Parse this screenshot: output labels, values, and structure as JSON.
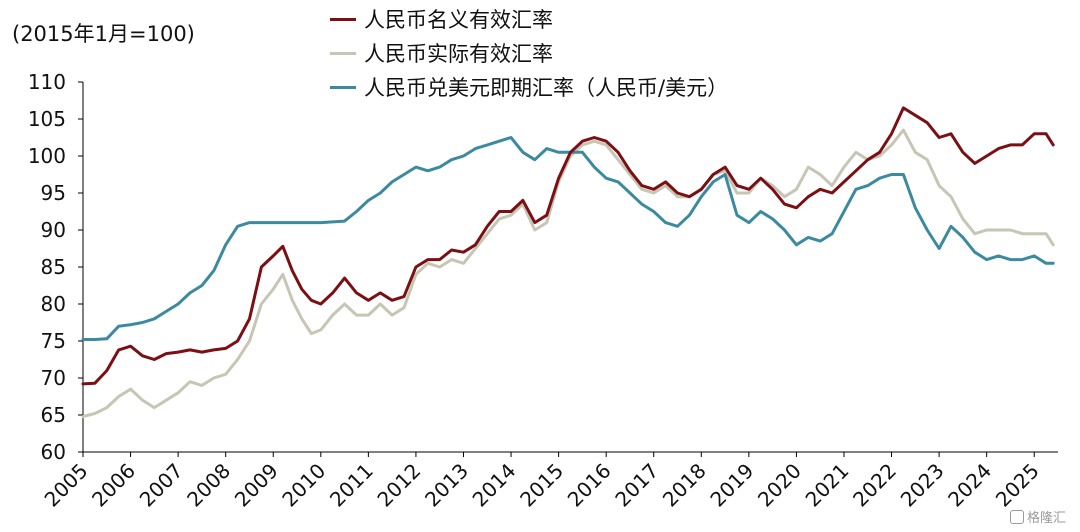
{
  "chart_data": {
    "type": "line",
    "unit_label": "(2015年1月=100)",
    "ylim": [
      60,
      110
    ],
    "yticks": [
      60,
      65,
      70,
      75,
      80,
      85,
      90,
      95,
      100,
      105,
      110
    ],
    "xlim": [
      2005,
      2025.5
    ],
    "xticks": [
      "2005",
      "2006",
      "2007",
      "2008",
      "2009",
      "2010",
      "2011",
      "2012",
      "2013",
      "2014",
      "2015",
      "2016",
      "2017",
      "2018",
      "2019",
      "2020",
      "2021",
      "2022",
      "2023",
      "2024",
      "2025"
    ],
    "legend_position": "top-center",
    "grid": false,
    "series": [
      {
        "name": "人民币名义有效汇率",
        "color": "#7b0f14",
        "points": [
          [
            2005.0,
            69.2
          ],
          [
            2005.25,
            69.3
          ],
          [
            2005.5,
            71.0
          ],
          [
            2005.75,
            73.8
          ],
          [
            2006.0,
            74.3
          ],
          [
            2006.25,
            73.0
          ],
          [
            2006.5,
            72.5
          ],
          [
            2006.75,
            73.3
          ],
          [
            2007.0,
            73.5
          ],
          [
            2007.25,
            73.8
          ],
          [
            2007.5,
            73.5
          ],
          [
            2007.75,
            73.8
          ],
          [
            2008.0,
            74.0
          ],
          [
            2008.25,
            75.0
          ],
          [
            2008.5,
            78.0
          ],
          [
            2008.75,
            85.0
          ],
          [
            2009.0,
            86.5
          ],
          [
            2009.2,
            87.8
          ],
          [
            2009.4,
            84.5
          ],
          [
            2009.6,
            82.0
          ],
          [
            2009.8,
            80.5
          ],
          [
            2010.0,
            80.0
          ],
          [
            2010.25,
            81.5
          ],
          [
            2010.5,
            83.5
          ],
          [
            2010.75,
            81.5
          ],
          [
            2011.0,
            80.5
          ],
          [
            2011.25,
            81.5
          ],
          [
            2011.5,
            80.5
          ],
          [
            2011.75,
            81.0
          ],
          [
            2012.0,
            85.0
          ],
          [
            2012.25,
            86.0
          ],
          [
            2012.5,
            86.0
          ],
          [
            2012.75,
            87.3
          ],
          [
            2013.0,
            87.0
          ],
          [
            2013.25,
            88.0
          ],
          [
            2013.5,
            90.5
          ],
          [
            2013.75,
            92.5
          ],
          [
            2014.0,
            92.5
          ],
          [
            2014.25,
            94.0
          ],
          [
            2014.5,
            91.0
          ],
          [
            2014.75,
            92.0
          ],
          [
            2015.0,
            97.0
          ],
          [
            2015.25,
            100.5
          ],
          [
            2015.5,
            102.0
          ],
          [
            2015.75,
            102.5
          ],
          [
            2016.0,
            102.0
          ],
          [
            2016.25,
            100.5
          ],
          [
            2016.5,
            98.0
          ],
          [
            2016.75,
            96.0
          ],
          [
            2017.0,
            95.5
          ],
          [
            2017.25,
            96.5
          ],
          [
            2017.5,
            95.0
          ],
          [
            2017.75,
            94.5
          ],
          [
            2018.0,
            95.5
          ],
          [
            2018.25,
            97.5
          ],
          [
            2018.5,
            98.5
          ],
          [
            2018.75,
            96.0
          ],
          [
            2019.0,
            95.5
          ],
          [
            2019.25,
            97.0
          ],
          [
            2019.5,
            95.5
          ],
          [
            2019.75,
            93.5
          ],
          [
            2020.0,
            93.0
          ],
          [
            2020.25,
            94.5
          ],
          [
            2020.5,
            95.5
          ],
          [
            2020.75,
            95.0
          ],
          [
            2021.0,
            96.5
          ],
          [
            2021.25,
            98.0
          ],
          [
            2021.5,
            99.5
          ],
          [
            2021.75,
            100.5
          ],
          [
            2022.0,
            103.0
          ],
          [
            2022.25,
            106.5
          ],
          [
            2022.5,
            105.5
          ],
          [
            2022.75,
            104.5
          ],
          [
            2023.0,
            102.5
          ],
          [
            2023.25,
            103.0
          ],
          [
            2023.5,
            100.5
          ],
          [
            2023.75,
            99.0
          ],
          [
            2024.0,
            100.0
          ],
          [
            2024.25,
            101.0
          ],
          [
            2024.5,
            101.5
          ],
          [
            2024.75,
            101.5
          ],
          [
            2025.0,
            103.0
          ],
          [
            2025.25,
            103.0
          ],
          [
            2025.4,
            101.5
          ]
        ]
      },
      {
        "name": "人民币实际有效汇率",
        "color": "#c7c5b4",
        "points": [
          [
            2005.0,
            64.8
          ],
          [
            2005.25,
            65.2
          ],
          [
            2005.5,
            66.0
          ],
          [
            2005.75,
            67.5
          ],
          [
            2006.0,
            68.5
          ],
          [
            2006.25,
            67.0
          ],
          [
            2006.5,
            66.0
          ],
          [
            2006.75,
            67.0
          ],
          [
            2007.0,
            68.0
          ],
          [
            2007.25,
            69.5
          ],
          [
            2007.5,
            69.0
          ],
          [
            2007.75,
            70.0
          ],
          [
            2008.0,
            70.5
          ],
          [
            2008.25,
            72.5
          ],
          [
            2008.5,
            75.0
          ],
          [
            2008.75,
            80.0
          ],
          [
            2009.0,
            82.0
          ],
          [
            2009.2,
            84.0
          ],
          [
            2009.4,
            80.5
          ],
          [
            2009.6,
            78.0
          ],
          [
            2009.8,
            76.0
          ],
          [
            2010.0,
            76.5
          ],
          [
            2010.25,
            78.5
          ],
          [
            2010.5,
            80.0
          ],
          [
            2010.75,
            78.5
          ],
          [
            2011.0,
            78.5
          ],
          [
            2011.25,
            80.0
          ],
          [
            2011.5,
            78.5
          ],
          [
            2011.75,
            79.5
          ],
          [
            2012.0,
            84.0
          ],
          [
            2012.25,
            85.5
          ],
          [
            2012.5,
            85.0
          ],
          [
            2012.75,
            86.0
          ],
          [
            2013.0,
            85.5
          ],
          [
            2013.25,
            87.5
          ],
          [
            2013.5,
            89.5
          ],
          [
            2013.75,
            91.5
          ],
          [
            2014.0,
            92.0
          ],
          [
            2014.25,
            93.5
          ],
          [
            2014.5,
            90.0
          ],
          [
            2014.75,
            91.0
          ],
          [
            2015.0,
            96.5
          ],
          [
            2015.25,
            100.0
          ],
          [
            2015.5,
            101.5
          ],
          [
            2015.75,
            102.0
          ],
          [
            2016.0,
            101.5
          ],
          [
            2016.25,
            99.5
          ],
          [
            2016.5,
            97.5
          ],
          [
            2016.75,
            95.5
          ],
          [
            2017.0,
            95.0
          ],
          [
            2017.25,
            96.0
          ],
          [
            2017.5,
            94.5
          ],
          [
            2017.75,
            94.5
          ],
          [
            2018.0,
            95.5
          ],
          [
            2018.25,
            97.5
          ],
          [
            2018.5,
            98.0
          ],
          [
            2018.75,
            95.0
          ],
          [
            2019.0,
            95.0
          ],
          [
            2019.25,
            97.0
          ],
          [
            2019.5,
            96.0
          ],
          [
            2019.75,
            94.5
          ],
          [
            2020.0,
            95.5
          ],
          [
            2020.25,
            98.5
          ],
          [
            2020.5,
            97.5
          ],
          [
            2020.75,
            96.0
          ],
          [
            2021.0,
            98.5
          ],
          [
            2021.25,
            100.5
          ],
          [
            2021.5,
            99.5
          ],
          [
            2021.75,
            100.0
          ],
          [
            2022.0,
            101.5
          ],
          [
            2022.25,
            103.5
          ],
          [
            2022.5,
            100.5
          ],
          [
            2022.75,
            99.5
          ],
          [
            2023.0,
            96.0
          ],
          [
            2023.25,
            94.5
          ],
          [
            2023.5,
            91.5
          ],
          [
            2023.75,
            89.5
          ],
          [
            2024.0,
            90.0
          ],
          [
            2024.25,
            90.0
          ],
          [
            2024.5,
            90.0
          ],
          [
            2024.75,
            89.5
          ],
          [
            2025.0,
            89.5
          ],
          [
            2025.25,
            89.5
          ],
          [
            2025.4,
            88.0
          ]
        ]
      },
      {
        "name": "人民币兑美元即期汇率（人民币/美元）",
        "color": "#3b8aa0",
        "points": [
          [
            2005.0,
            75.2
          ],
          [
            2005.25,
            75.2
          ],
          [
            2005.5,
            75.3
          ],
          [
            2005.75,
            77.0
          ],
          [
            2006.0,
            77.2
          ],
          [
            2006.25,
            77.5
          ],
          [
            2006.5,
            78.0
          ],
          [
            2006.75,
            79.0
          ],
          [
            2007.0,
            80.0
          ],
          [
            2007.25,
            81.5
          ],
          [
            2007.5,
            82.5
          ],
          [
            2007.75,
            84.5
          ],
          [
            2008.0,
            88.0
          ],
          [
            2008.25,
            90.5
          ],
          [
            2008.5,
            91.0
          ],
          [
            2008.75,
            91.0
          ],
          [
            2009.0,
            91.0
          ],
          [
            2009.5,
            91.0
          ],
          [
            2010.0,
            91.0
          ],
          [
            2010.5,
            91.2
          ],
          [
            2010.75,
            92.5
          ],
          [
            2011.0,
            94.0
          ],
          [
            2011.25,
            95.0
          ],
          [
            2011.5,
            96.5
          ],
          [
            2011.75,
            97.5
          ],
          [
            2012.0,
            98.5
          ],
          [
            2012.25,
            98.0
          ],
          [
            2012.5,
            98.5
          ],
          [
            2012.75,
            99.5
          ],
          [
            2013.0,
            100.0
          ],
          [
            2013.25,
            101.0
          ],
          [
            2013.5,
            101.5
          ],
          [
            2013.75,
            102.0
          ],
          [
            2014.0,
            102.5
          ],
          [
            2014.25,
            100.5
          ],
          [
            2014.5,
            99.5
          ],
          [
            2014.75,
            101.0
          ],
          [
            2015.0,
            100.5
          ],
          [
            2015.25,
            100.5
          ],
          [
            2015.5,
            100.5
          ],
          [
            2015.75,
            98.5
          ],
          [
            2016.0,
            97.0
          ],
          [
            2016.25,
            96.5
          ],
          [
            2016.5,
            95.0
          ],
          [
            2016.75,
            93.5
          ],
          [
            2017.0,
            92.5
          ],
          [
            2017.25,
            91.0
          ],
          [
            2017.5,
            90.5
          ],
          [
            2017.75,
            92.0
          ],
          [
            2018.0,
            94.5
          ],
          [
            2018.25,
            96.5
          ],
          [
            2018.5,
            97.5
          ],
          [
            2018.75,
            92.0
          ],
          [
            2019.0,
            91.0
          ],
          [
            2019.25,
            92.5
          ],
          [
            2019.5,
            91.5
          ],
          [
            2019.75,
            90.0
          ],
          [
            2020.0,
            88.0
          ],
          [
            2020.25,
            89.0
          ],
          [
            2020.5,
            88.5
          ],
          [
            2020.75,
            89.5
          ],
          [
            2021.0,
            92.5
          ],
          [
            2021.25,
            95.5
          ],
          [
            2021.5,
            96.0
          ],
          [
            2021.75,
            97.0
          ],
          [
            2022.0,
            97.5
          ],
          [
            2022.25,
            97.5
          ],
          [
            2022.5,
            93.0
          ],
          [
            2022.75,
            90.0
          ],
          [
            2023.0,
            87.5
          ],
          [
            2023.25,
            90.5
          ],
          [
            2023.5,
            89.0
          ],
          [
            2023.75,
            87.0
          ],
          [
            2024.0,
            86.0
          ],
          [
            2024.25,
            86.5
          ],
          [
            2024.5,
            86.0
          ],
          [
            2024.75,
            86.0
          ],
          [
            2025.0,
            86.5
          ],
          [
            2025.25,
            85.5
          ],
          [
            2025.4,
            85.5
          ]
        ]
      }
    ]
  },
  "watermark": "格隆汇"
}
